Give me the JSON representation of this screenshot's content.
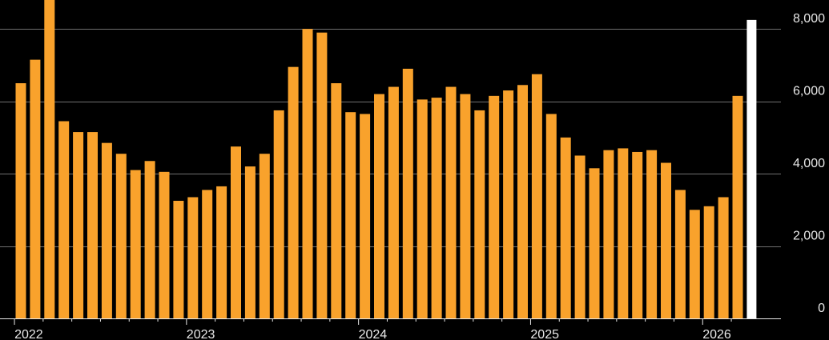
{
  "chart_data": {
    "type": "bar",
    "title": "",
    "xlabel": "",
    "ylabel": "",
    "ylim": [
      0,
      8800
    ],
    "y_ticks": [
      0,
      2000,
      4000,
      6000,
      8000
    ],
    "y_tick_labels": [
      "0",
      "2,000",
      "4,000",
      "6,000",
      "8,000"
    ],
    "y_axis_position": "right",
    "grid": true,
    "x_tick_labels": [
      "2022",
      "2023",
      "2024",
      "2025",
      "2026"
    ],
    "categories": [
      "2022-01",
      "2022-02",
      "2022-03",
      "2022-04",
      "2022-05",
      "2022-06",
      "2022-07",
      "2022-08",
      "2022-09",
      "2022-10",
      "2022-11",
      "2022-12",
      "2023-01",
      "2023-02",
      "2023-03",
      "2023-04",
      "2023-05",
      "2023-06",
      "2023-07",
      "2023-08",
      "2023-09",
      "2023-10",
      "2023-11",
      "2023-12",
      "2024-01",
      "2024-02",
      "2024-03",
      "2024-04",
      "2024-05",
      "2024-06",
      "2024-07",
      "2024-08",
      "2024-09",
      "2024-10",
      "2024-11",
      "2024-12",
      "2025-01",
      "2025-02",
      "2025-03",
      "2025-04",
      "2025-05",
      "2025-06",
      "2025-07",
      "2025-08",
      "2025-09",
      "2025-10",
      "2025-11",
      "2025-12",
      "2026-01",
      "2026-02",
      "2026-03",
      "2026-04"
    ],
    "values": [
      6500,
      7150,
      8900,
      5450,
      5150,
      5150,
      4850,
      4550,
      4100,
      4350,
      4050,
      3250,
      3350,
      3550,
      3650,
      4750,
      4200,
      4550,
      5750,
      6950,
      8000,
      7900,
      6500,
      5700,
      5650,
      6200,
      6400,
      6900,
      6050,
      6100,
      6400,
      6200,
      5750,
      6150,
      6300,
      6450,
      6750,
      5650,
      5000,
      4500,
      4150,
      4650,
      4700,
      4600,
      4650,
      4300,
      3550,
      3000,
      3100,
      3350,
      6150,
      8250
    ],
    "highlight_last": true,
    "colors": {
      "bar": "#F9A22C",
      "highlight": "#FFFFFF",
      "grid": "#6F6F6F",
      "text": "#E8E8E8",
      "background": "#000000"
    }
  }
}
